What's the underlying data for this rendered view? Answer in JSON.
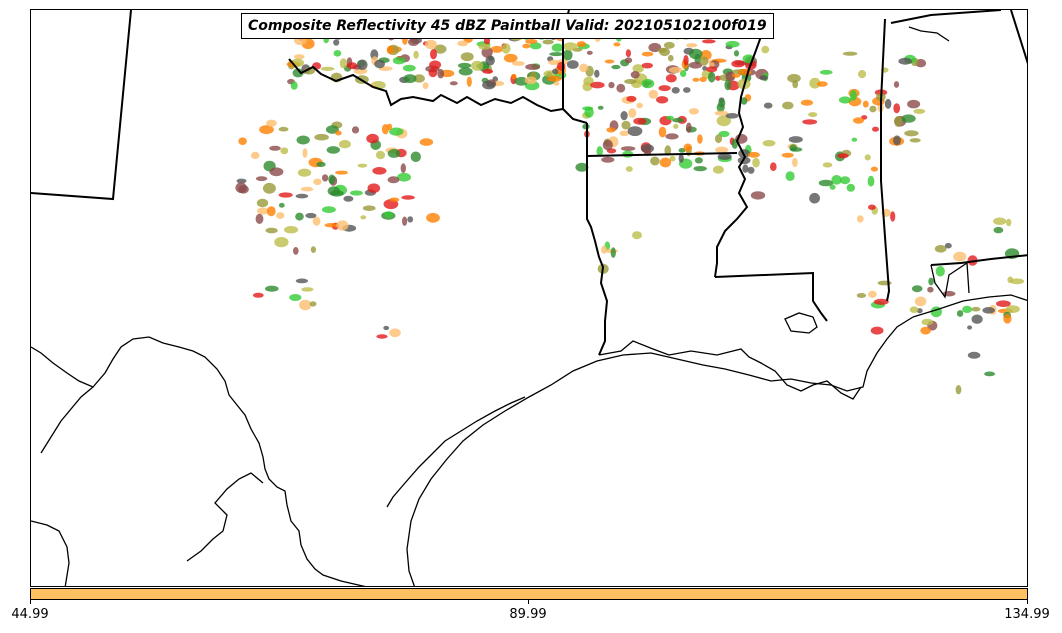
{
  "title": "Composite Reflectivity 45 dBZ Paintball Valid: 202105102100f019",
  "colorbar": {
    "color": "#ffc061",
    "ticks": [
      "44.99",
      "89.99",
      "134.99"
    ]
  },
  "paintball_colors": [
    "#e31a1c",
    "#ff7f00",
    "#fdbf6f",
    "#33cc33",
    "#9a9a3a",
    "#555555",
    "#8b4a4a",
    "#bdbd4a",
    "#2e8b2e"
  ]
}
